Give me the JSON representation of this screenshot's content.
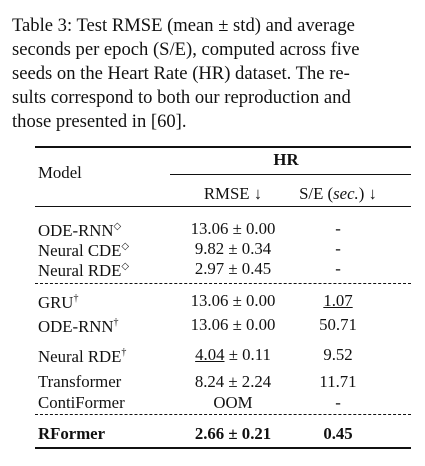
{
  "caption": [
    "Table 3: Test RMSE (mean ± std) and average",
    "seconds per epoch (S/E), computed across five",
    "seeds on the Heart Rate (HR) dataset. The re-",
    "sults correspond to both our reproduction and",
    "those presented in [60]."
  ],
  "table": {
    "header": {
      "model": "Model",
      "dataset": "HR",
      "rmse": "RMSE ↓",
      "se": "S/E (",
      "se_unit": "sec.",
      "se_tail": ") ↓"
    },
    "groups": [
      [
        {
          "name": "ODE-RNN",
          "mark": "◇",
          "rmse": [
            "13.06",
            " ± 0.00"
          ],
          "se": "-"
        },
        {
          "name": "Neural CDE",
          "mark": "◇",
          "rmse": [
            "9.82",
            " ± 0.34"
          ],
          "se": "-"
        },
        {
          "name": "Neural RDE",
          "mark": "◇",
          "rmse": [
            "2.97",
            " ± 0.45"
          ],
          "se": "-"
        }
      ],
      [
        {
          "name": "GRU",
          "mark": "†",
          "rmse": [
            "13.06",
            " ± 0.00"
          ],
          "se": "1.07",
          "se_underline": true
        },
        {
          "name": "ODE-RNN",
          "mark": "†",
          "rmse": [
            "13.06",
            " ± 0.00"
          ],
          "se": "50.71"
        },
        {
          "name": "Neural RDE",
          "mark": "†",
          "rmse": [
            "4.04",
            " ± 0.11"
          ],
          "rmse_underline": true,
          "se": "9.52"
        },
        {
          "name": "Transformer",
          "rmse": [
            "8.24",
            " ± 2.24"
          ],
          "se": "11.71"
        },
        {
          "name": "ContiFormer",
          "rmse": [
            "OOM"
          ],
          "se": "-"
        }
      ],
      [
        {
          "name": "RFormer",
          "rmse": [
            "2.66",
            " ± 0.21"
          ],
          "se": "0.45",
          "bold": true
        }
      ]
    ]
  }
}
